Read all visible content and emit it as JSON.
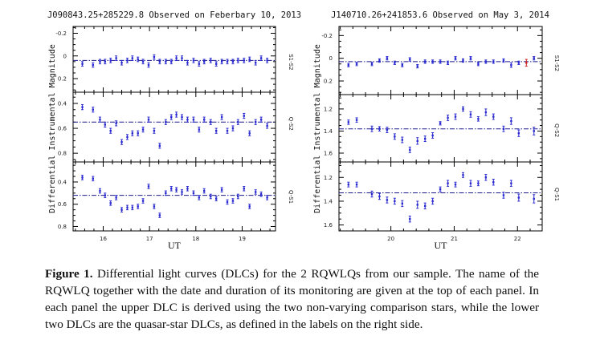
{
  "figure_caption": {
    "label": "Figure 1.",
    "text": "Differential light curves (DLCs) for the 2 RQWLQs from our sample. The name of the RQWLQ together with the date and duration of its monitoring are given at the top of each panel. In each panel the upper DLC is derived using the two non-varying comparison stars, while the lower two DLCs are the quasar-star DLCs, as defined in the labels on the right side."
  },
  "colors": {
    "points": "#2a2ad0",
    "line": "#1a1a8a",
    "outlier": "#d02020",
    "frame": "#000000"
  },
  "chart_data": [
    {
      "type": "scatter",
      "title": "J090843.25+285229.8 Observed on Feberbary 10, 2013",
      "xlabel": "UT",
      "ylabel": "Differential Instrumental Magnitude",
      "xlim": [
        15.35,
        19.72
      ],
      "xticks": [
        16,
        17,
        18,
        19
      ],
      "x": [
        15.55,
        15.78,
        15.93,
        16.04,
        16.16,
        16.28,
        16.4,
        16.52,
        16.63,
        16.75,
        16.86,
        16.98,
        17.1,
        17.22,
        17.35,
        17.47,
        17.58,
        17.7,
        17.82,
        17.95,
        18.07,
        18.18,
        18.32,
        18.44,
        18.56,
        18.68,
        18.8,
        18.91,
        19.04,
        19.16,
        19.29,
        19.41,
        19.54
      ],
      "panels": [
        {
          "label": "S1-S2",
          "ylim": [
            -0.26,
            0.32
          ],
          "yticks": [
            -0.2,
            0,
            0.2
          ],
          "ytick_labels": [
            "-0.2",
            "0",
            "0.2"
          ],
          "mean": 0.04,
          "y": [
            0.07,
            0.08,
            0.05,
            0.05,
            0.04,
            0.02,
            0.06,
            0.04,
            0.02,
            0.03,
            0.05,
            0.08,
            0.01,
            0.05,
            0.05,
            0.05,
            0.02,
            0.02,
            0.06,
            0.04,
            0.07,
            0.05,
            0.04,
            0.07,
            0.05,
            0.05,
            0.05,
            0.04,
            0.04,
            0.03,
            0.06,
            0.02,
            0.04
          ],
          "err": [
            0.02,
            0.02,
            0.02,
            0.02,
            0.02,
            0.02,
            0.02,
            0.02,
            0.02,
            0.02,
            0.02,
            0.02,
            0.02,
            0.02,
            0.02,
            0.02,
            0.02,
            0.02,
            0.02,
            0.02,
            0.02,
            0.02,
            0.02,
            0.02,
            0.02,
            0.02,
            0.02,
            0.02,
            0.02,
            0.02,
            0.02,
            0.02,
            0.02
          ]
        },
        {
          "label": "Q-S2",
          "ylim": [
            0.31,
            0.87
          ],
          "yticks": [
            0.4,
            0.6,
            0.8
          ],
          "ytick_labels": [
            "0.4",
            "0.6",
            "0.8"
          ],
          "mean": 0.55,
          "y": [
            0.43,
            0.45,
            0.53,
            0.57,
            0.62,
            0.56,
            0.71,
            0.67,
            0.64,
            0.64,
            0.61,
            0.53,
            0.62,
            0.74,
            0.55,
            0.51,
            0.49,
            0.51,
            0.53,
            0.53,
            0.61,
            0.53,
            0.55,
            0.62,
            0.51,
            0.62,
            0.6,
            0.55,
            0.5,
            0.64,
            0.55,
            0.53,
            0.58
          ],
          "err": [
            0.02,
            0.02,
            0.02,
            0.02,
            0.02,
            0.02,
            0.02,
            0.02,
            0.02,
            0.02,
            0.02,
            0.02,
            0.02,
            0.02,
            0.02,
            0.02,
            0.02,
            0.02,
            0.02,
            0.02,
            0.02,
            0.02,
            0.02,
            0.02,
            0.02,
            0.02,
            0.02,
            0.02,
            0.02,
            0.02,
            0.02,
            0.02,
            0.02
          ]
        },
        {
          "label": "Q-S1",
          "ylim": [
            0.22,
            0.84
          ],
          "yticks": [
            0.4,
            0.6,
            0.8
          ],
          "ytick_labels": [
            "0.4",
            "0.6",
            "0.8"
          ],
          "mean": 0.52,
          "y": [
            0.36,
            0.37,
            0.48,
            0.52,
            0.59,
            0.54,
            0.65,
            0.63,
            0.63,
            0.62,
            0.57,
            0.44,
            0.62,
            0.7,
            0.5,
            0.46,
            0.47,
            0.49,
            0.46,
            0.5,
            0.54,
            0.48,
            0.53,
            0.55,
            0.47,
            0.58,
            0.57,
            0.53,
            0.46,
            0.62,
            0.49,
            0.51,
            0.54
          ],
          "err": [
            0.02,
            0.02,
            0.02,
            0.02,
            0.02,
            0.02,
            0.02,
            0.02,
            0.02,
            0.02,
            0.02,
            0.02,
            0.02,
            0.02,
            0.02,
            0.02,
            0.02,
            0.02,
            0.02,
            0.02,
            0.02,
            0.02,
            0.02,
            0.02,
            0.02,
            0.02,
            0.02,
            0.02,
            0.02,
            0.02,
            0.02,
            0.02,
            0.02
          ]
        }
      ]
    },
    {
      "type": "scatter",
      "title": "J140710.26+241853.6 Observed on May 3, 2014",
      "xlabel": "UT",
      "ylabel": "Differential Instrumental Magnitude",
      "xlim": [
        19.18,
        22.39
      ],
      "xticks": [
        20,
        21,
        22
      ],
      "x": [
        19.33,
        19.46,
        19.7,
        19.82,
        19.94,
        20.06,
        20.18,
        20.3,
        20.42,
        20.54,
        20.66,
        20.78,
        20.9,
        21.02,
        21.14,
        21.26,
        21.38,
        21.5,
        21.62,
        21.78,
        21.9,
        22.02,
        22.26
      ],
      "panels": [
        {
          "label": "S1-S2",
          "ylim": [
            -0.28,
            0.32
          ],
          "yticks": [
            -0.2,
            0,
            0.2
          ],
          "ytick_labels": [
            "-0.2",
            "0",
            "0.2"
          ],
          "mean": 0.03,
          "y": [
            0.06,
            0.05,
            0.05,
            0.02,
            0.0,
            0.04,
            0.06,
            0.01,
            0.07,
            0.03,
            0.03,
            0.03,
            0.04,
            0.0,
            0.02,
            0.0,
            0.05,
            0.03,
            0.03,
            0.02,
            0.06,
            0.04,
            0.0
          ],
          "err": [
            0.015,
            0.015,
            0.015,
            0.015,
            0.015,
            0.015,
            0.015,
            0.015,
            0.015,
            0.015,
            0.015,
            0.015,
            0.015,
            0.015,
            0.015,
            0.015,
            0.015,
            0.015,
            0.015,
            0.015,
            0.02,
            0.015,
            0.015
          ],
          "outliers": [
            {
              "x": 22.14,
              "y": 0.04,
              "err": 0.03
            }
          ]
        },
        {
          "label": "Q-S2",
          "ylim": [
            1.07,
            1.68
          ],
          "yticks": [
            1.2,
            1.4,
            1.6
          ],
          "ytick_labels": [
            "1.2",
            "1.4",
            "1.6"
          ],
          "mean": 1.38,
          "y": [
            1.32,
            1.3,
            1.38,
            1.38,
            1.39,
            1.45,
            1.48,
            1.57,
            1.49,
            1.47,
            1.44,
            1.33,
            1.28,
            1.27,
            1.2,
            1.25,
            1.29,
            1.23,
            1.27,
            1.38,
            1.31,
            1.42,
            1.4
          ],
          "err": [
            0.02,
            0.02,
            0.025,
            0.02,
            0.025,
            0.025,
            0.025,
            0.025,
            0.03,
            0.025,
            0.025,
            0.015,
            0.025,
            0.025,
            0.02,
            0.025,
            0.02,
            0.03,
            0.025,
            0.025,
            0.03,
            0.03,
            0.035
          ]
        },
        {
          "label": "Q-S1",
          "ylim": [
            1.07,
            1.65
          ],
          "yticks": [
            1.2,
            1.4,
            1.6
          ],
          "ytick_labels": [
            "1.2",
            "1.4",
            "1.6"
          ],
          "mean": 1.33,
          "y": [
            1.26,
            1.26,
            1.34,
            1.36,
            1.39,
            1.4,
            1.42,
            1.55,
            1.43,
            1.44,
            1.4,
            1.3,
            1.25,
            1.26,
            1.18,
            1.25,
            1.25,
            1.2,
            1.24,
            1.35,
            1.25,
            1.37,
            1.38
          ],
          "err": [
            0.02,
            0.02,
            0.025,
            0.025,
            0.025,
            0.025,
            0.025,
            0.025,
            0.03,
            0.025,
            0.025,
            0.02,
            0.025,
            0.02,
            0.02,
            0.025,
            0.02,
            0.025,
            0.025,
            0.025,
            0.025,
            0.03,
            0.035
          ]
        }
      ]
    }
  ]
}
